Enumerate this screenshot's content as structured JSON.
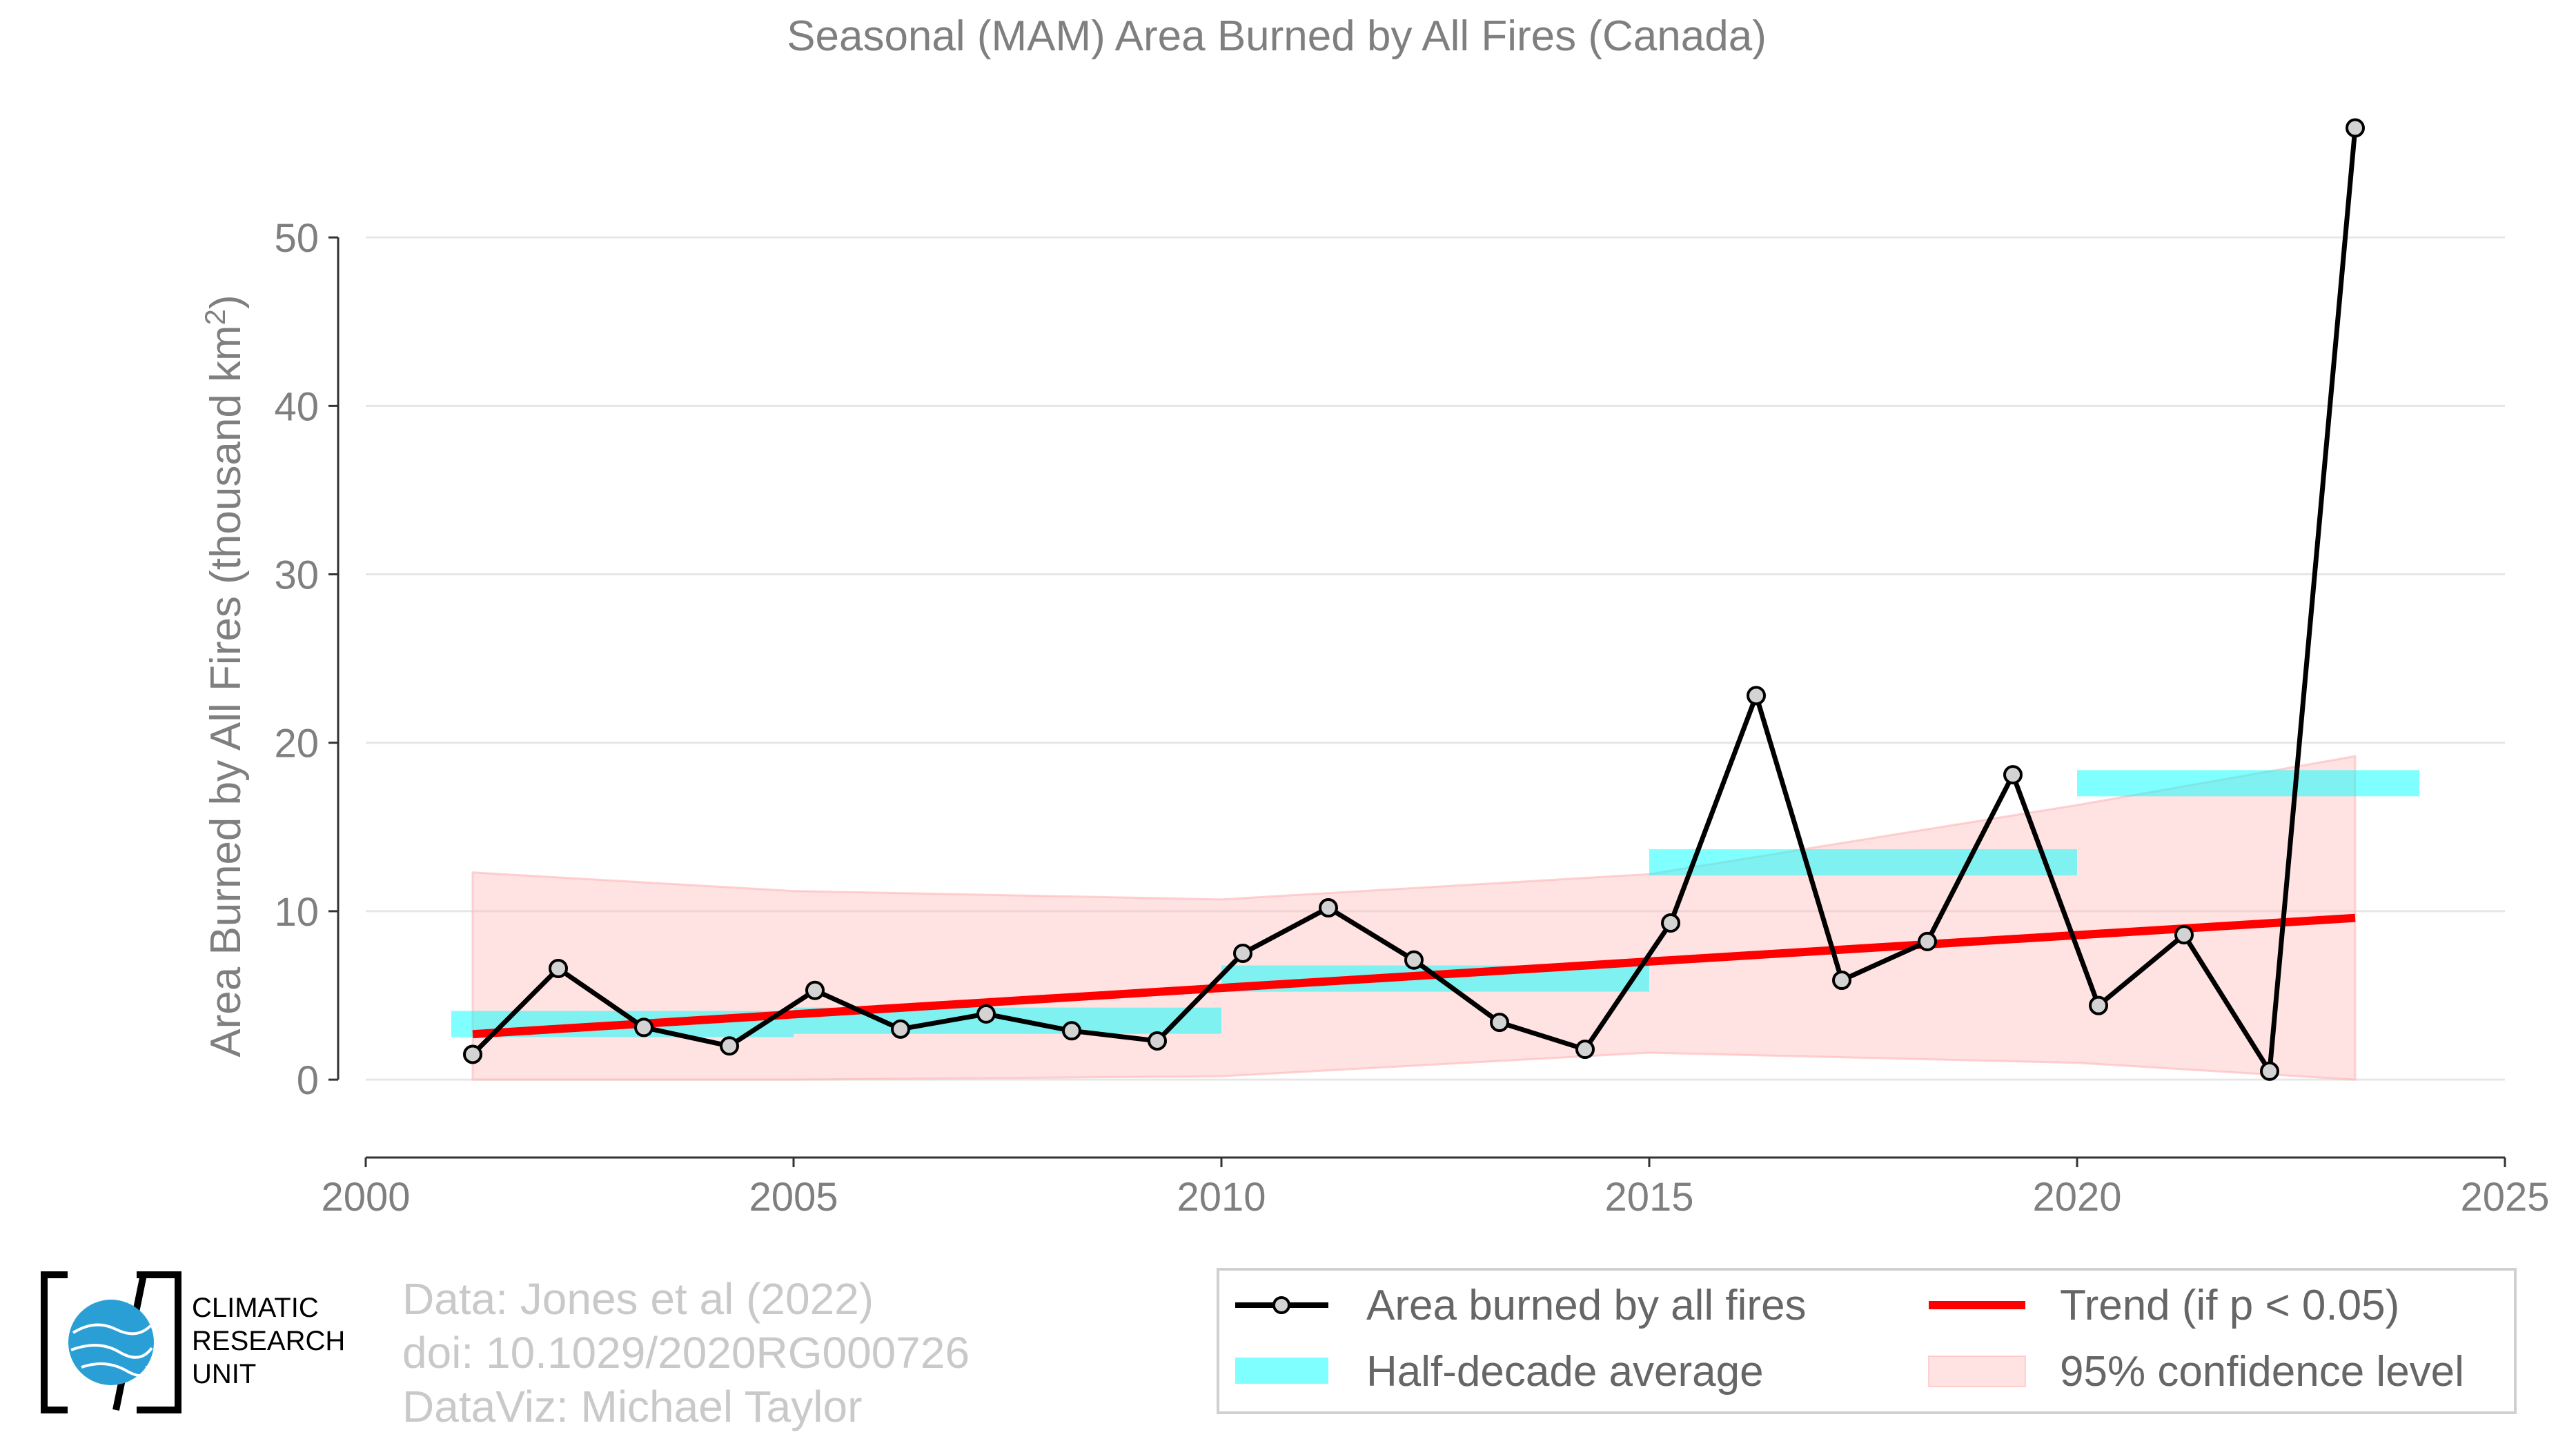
{
  "chart_data": {
    "type": "line",
    "title": "Seasonal (MAM) Area Burned by All Fires (Canada)",
    "ylabel": "Area Burned by All Fires (thousand km",
    "ylabel_sup": "2",
    "ylabel_close": ")",
    "xlim": [
      2000,
      2025
    ],
    "ylim": [
      -4.5,
      60
    ],
    "x_ticks": [
      2000,
      2005,
      2010,
      2015,
      2020,
      2025
    ],
    "y_ticks": [
      0,
      10,
      20,
      30,
      40,
      50
    ],
    "grid": "horizontal",
    "legend_position": "bottom-right",
    "series": [
      {
        "name": "Area burned by all fires",
        "color": "#000000",
        "marker_fill": "#d3d3d3",
        "x": [
          2001.25,
          2002.25,
          2003.25,
          2004.25,
          2005.25,
          2006.25,
          2007.25,
          2008.25,
          2009.25,
          2010.25,
          2011.25,
          2012.25,
          2013.25,
          2014.25,
          2015.25,
          2016.25,
          2017.25,
          2018.25,
          2019.25,
          2020.25,
          2021.25,
          2022.25,
          2023.25
        ],
        "values": [
          1.5,
          6.6,
          3.1,
          2.0,
          5.3,
          3.0,
          3.9,
          2.9,
          2.3,
          7.5,
          10.2,
          7.1,
          3.4,
          1.8,
          9.3,
          22.8,
          5.9,
          8.2,
          18.1,
          4.4,
          8.6,
          0.5,
          56.5
        ]
      }
    ],
    "half_decade_average": {
      "name": "Half-decade average",
      "color": "#00ffff",
      "segments": [
        {
          "x0": 2001,
          "x1": 2005,
          "value": 3.3
        },
        {
          "x0": 2005,
          "x1": 2010,
          "value": 3.5
        },
        {
          "x0": 2010,
          "x1": 2015,
          "value": 6.0
        },
        {
          "x0": 2015,
          "x1": 2020,
          "value": 12.9
        },
        {
          "x0": 2020,
          "x1": 2024,
          "value": 17.6
        }
      ]
    },
    "trend": {
      "name": "Trend (if p < 0.05)",
      "color": "#ff0000",
      "x": [
        2001.25,
        2023.25
      ],
      "values": [
        2.7,
        9.6
      ]
    },
    "confidence_band": {
      "name": "95% confidence level",
      "color": "#ffb6b6",
      "x": [
        2001.25,
        2005,
        2010,
        2015,
        2020,
        2023.25
      ],
      "upper": [
        12.3,
        11.2,
        10.7,
        12.2,
        16.3,
        19.2
      ],
      "lower": [
        0.0,
        0.0,
        0.2,
        1.6,
        1.0,
        0.0
      ]
    }
  },
  "credits": {
    "line1": "Data: Jones et al (2022)",
    "line2": "doi: 10.1029/2020RG000726",
    "line3": "DataViz: Michael Taylor"
  },
  "logo": {
    "line1": "CLIMATIC",
    "line2": "RESEARCH",
    "line3": "UNIT"
  }
}
